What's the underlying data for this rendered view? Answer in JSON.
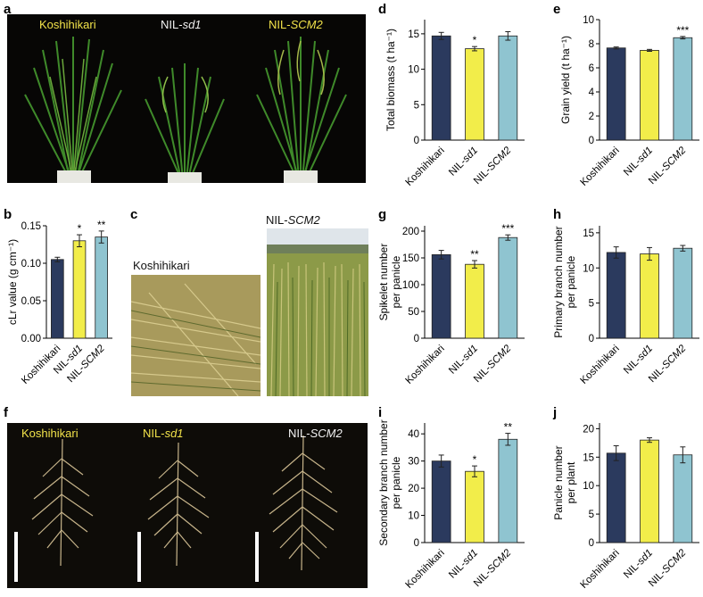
{
  "panels": {
    "a": "a",
    "b": "b",
    "c": "c",
    "d": "d",
    "e": "e",
    "f": "f",
    "g": "g",
    "h": "h",
    "i": "i",
    "j": "j"
  },
  "photo_a": {
    "labels": [
      "Koshihikari",
      "NIL-sd1",
      "NIL-SCM2"
    ]
  },
  "photo_c": {
    "left_label": "Koshihikari",
    "right_label": "NIL-SCM2"
  },
  "photo_f": {
    "labels": [
      "Koshihikari",
      "NIL-sd1",
      "NIL-SCM2"
    ]
  },
  "colors": {
    "Koshihikari": "#2b3a5e",
    "NIL-sd1": "#f2ed4a",
    "NIL-SCM2": "#8fc4d0",
    "photo_dark": "#0e0c08",
    "label_yellow": "#f2e34a"
  },
  "chart_data": [
    {
      "id": "b",
      "type": "bar",
      "categories": [
        "Koshihikari",
        "NIL-sd1",
        "NIL-SCM2"
      ],
      "values": [
        0.105,
        0.13,
        0.135
      ],
      "errors": [
        0.003,
        0.008,
        0.008
      ],
      "significance": [
        "",
        "*",
        "**"
      ],
      "ylabel": "cLr value (g cm⁻¹)",
      "ylim": [
        0,
        0.15
      ],
      "yticks": [
        "0.00",
        "0.05",
        "0.10",
        "0.15"
      ],
      "ytick_values": [
        0,
        0.05,
        0.1,
        0.15
      ]
    },
    {
      "id": "d",
      "type": "bar",
      "categories": [
        "Koshihikari",
        "NIL-sd1",
        "NIL-SCM2"
      ],
      "values": [
        14.7,
        12.9,
        14.7
      ],
      "errors": [
        0.5,
        0.3,
        0.6
      ],
      "significance": [
        "",
        "*",
        ""
      ],
      "ylabel": "Total biomass (t ha⁻¹)",
      "ylim": [
        0,
        17
      ],
      "yticks": [
        "0",
        "5",
        "10",
        "15"
      ],
      "ytick_values": [
        0,
        5,
        10,
        15
      ]
    },
    {
      "id": "e",
      "type": "bar",
      "categories": [
        "Koshihikari",
        "NIL-sd1",
        "NIL-SCM2"
      ],
      "values": [
        7.65,
        7.45,
        8.5
      ],
      "errors": [
        0.08,
        0.08,
        0.1
      ],
      "significance": [
        "",
        "",
        "***"
      ],
      "ylabel": "Grain yield (t ha⁻¹)",
      "ylim": [
        0,
        10
      ],
      "yticks": [
        "0",
        "2",
        "4",
        "6",
        "8",
        "10"
      ],
      "ytick_values": [
        0,
        2,
        4,
        6,
        8,
        10
      ]
    },
    {
      "id": "g",
      "type": "bar",
      "categories": [
        "Koshihikari",
        "NIL-sd1",
        "NIL-SCM2"
      ],
      "values": [
        156,
        138,
        188
      ],
      "errors": [
        8,
        7,
        5
      ],
      "significance": [
        "",
        "**",
        "***"
      ],
      "ylabel": "Spikelet number per panicle",
      "ylim": [
        0,
        210
      ],
      "yticks": [
        "0",
        "50",
        "100",
        "150",
        "200"
      ],
      "ytick_values": [
        0,
        50,
        100,
        150,
        200
      ]
    },
    {
      "id": "h",
      "type": "bar",
      "categories": [
        "Koshihikari",
        "NIL-sd1",
        "NIL-SCM2"
      ],
      "values": [
        12.2,
        12.0,
        12.8
      ],
      "errors": [
        0.8,
        0.9,
        0.4
      ],
      "significance": [
        "",
        "",
        ""
      ],
      "ylabel": "Primary branch number per panicle",
      "ylim": [
        0,
        16
      ],
      "yticks": [
        "0",
        "5",
        "10",
        "15"
      ],
      "ytick_values": [
        0,
        5,
        10,
        15
      ]
    },
    {
      "id": "i",
      "type": "bar",
      "categories": [
        "Koshihikari",
        "NIL-sd1",
        "NIL-SCM2"
      ],
      "values": [
        30,
        26.2,
        38
      ],
      "errors": [
        2.2,
        2.0,
        2.2
      ],
      "significance": [
        "",
        "*",
        "**"
      ],
      "ylabel": "Secondary branch number per panicle",
      "ylim": [
        0,
        44
      ],
      "yticks": [
        "0",
        "10",
        "20",
        "30",
        "40"
      ],
      "ytick_values": [
        0,
        10,
        20,
        30,
        40
      ]
    },
    {
      "id": "j",
      "type": "bar",
      "categories": [
        "Koshihikari",
        "NIL-sd1",
        "NIL-SCM2"
      ],
      "values": [
        15.7,
        18,
        15.4
      ],
      "errors": [
        1.3,
        0.4,
        1.4
      ],
      "significance": [
        "",
        "",
        ""
      ],
      "ylabel": "Panicle number per plant",
      "ylim": [
        0,
        21
      ],
      "yticks": [
        "0",
        "5",
        "10",
        "15",
        "20"
      ],
      "ytick_values": [
        0,
        5,
        10,
        15,
        20
      ]
    }
  ]
}
